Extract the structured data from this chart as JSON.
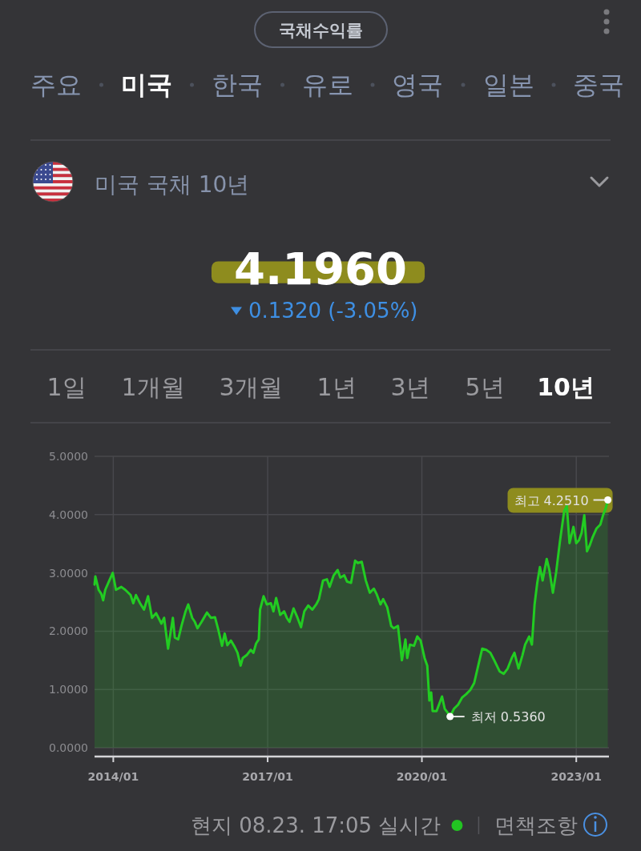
{
  "chart_data": {
    "type": "area",
    "title": "미국 국채 10년",
    "subtitle": "4.1960",
    "annotations": [
      "국채수익률",
      "주요",
      "미국",
      "한국",
      "유로",
      "영국",
      "일본",
      "중국",
      "0.1320 (-3.05%)",
      "1일",
      "1개월",
      "3개월",
      "1년",
      "3년",
      "5년",
      "10년",
      "현지 08.23. 17:05 실시간",
      "면책조항",
      {
        "text": "최고 4.2510",
        "x": "2023-08-13",
        "y": 4.251
      },
      {
        "text": "최저 0.5360",
        "x": "2020-07-19",
        "y": 0.536
      }
    ],
    "x": [
      "2013-08-21",
      "2013-08-27",
      "2013-09-19",
      "2013-10-08",
      "2013-10-21",
      "2013-11-05",
      "2013-12-04",
      "2013-12-28",
      "2014-01-20",
      "2014-02-27",
      "2014-03-27",
      "2014-05-04",
      "2014-05-23",
      "2014-06-11",
      "2014-07-10",
      "2014-08-07",
      "2014-09-05",
      "2014-10-03",
      "2014-11-01",
      "2014-12-09",
      "2014-12-28",
      "2015-01-25",
      "2015-02-13",
      "2015-02-28",
      "2015-03-14",
      "2015-04-07",
      "2015-04-30",
      "2015-05-29",
      "2015-06-17",
      "2015-07-15",
      "2015-08-03",
      "2015-08-22",
      "2015-09-20",
      "2015-10-28",
      "2015-11-25",
      "2015-12-24",
      "2016-01-17",
      "2016-02-12",
      "2016-03-02",
      "2016-03-21",
      "2016-04-15",
      "2016-05-12",
      "2016-06-01",
      "2016-06-23",
      "2016-07-08",
      "2016-08-05",
      "2016-09-03",
      "2016-09-22",
      "2016-10-11",
      "2016-10-30",
      "2016-11-08",
      "2016-12-03",
      "2016-12-26",
      "2017-01-24",
      "2017-02-11",
      "2017-03-02",
      "2017-03-31",
      "2017-04-28",
      "2017-05-17",
      "2017-06-05",
      "2017-07-04",
      "2017-08-01",
      "2017-08-26",
      "2017-09-18",
      "2017-10-16",
      "2017-11-14",
      "2017-12-12",
      "2017-12-31",
      "2018-01-29",
      "2018-02-26",
      "2018-03-17",
      "2018-04-15",
      "2018-05-13",
      "2018-06-01",
      "2018-06-29",
      "2018-07-19",
      "2018-08-16",
      "2018-09-14",
      "2018-10-03",
      "2018-10-31",
      "2018-11-29",
      "2018-12-27",
      "2019-01-25",
      "2019-02-13",
      "2019-03-13",
      "2019-04-01",
      "2019-04-30",
      "2019-05-28",
      "2019-06-16",
      "2019-07-15",
      "2019-08-12",
      "2019-09-06",
      "2019-09-19",
      "2019-10-08",
      "2019-11-06",
      "2019-11-29",
      "2019-12-23",
      "2020-01-20",
      "2020-02-08",
      "2020-02-23",
      "2020-03-07",
      "2020-03-17",
      "2020-04-14",
      "2020-05-23",
      "2020-06-11",
      "2020-07-09",
      "2020-07-19",
      "2020-08-16",
      "2020-09-14",
      "2020-10-12",
      "2020-11-10",
      "2020-12-09",
      "2021-01-06",
      "2021-02-04",
      "2021-03-04",
      "2021-04-02",
      "2021-05-01",
      "2021-05-29",
      "2021-07-06",
      "2021-08-04",
      "2021-09-01",
      "2021-09-30",
      "2021-10-19",
      "2021-11-17",
      "2021-12-15",
      "2022-01-03",
      "2022-02-01",
      "2022-02-20",
      "2022-03-11",
      "2022-03-30",
      "2022-04-18",
      "2022-05-07",
      "2022-06-05",
      "2022-06-24",
      "2022-07-19",
      "2022-08-11",
      "2022-09-08",
      "2022-10-07",
      "2022-10-26",
      "2022-11-14",
      "2022-12-12",
      "2023-01-01",
      "2023-01-20",
      "2023-02-08",
      "2023-02-27",
      "2023-03-18",
      "2023-04-06",
      "2023-04-25",
      "2023-05-24",
      "2023-06-21",
      "2023-07-10",
      "2023-07-29",
      "2023-08-13"
    ],
    "values": [
      2.8,
      2.94,
      2.71,
      2.64,
      2.53,
      2.71,
      2.87,
      3.0,
      2.71,
      2.76,
      2.71,
      2.62,
      2.48,
      2.62,
      2.48,
      2.37,
      2.6,
      2.23,
      2.31,
      2.13,
      2.23,
      1.7,
      2.0,
      2.23,
      1.89,
      1.86,
      2.09,
      2.34,
      2.46,
      2.23,
      2.16,
      2.05,
      2.16,
      2.32,
      2.23,
      2.24,
      2.02,
      1.75,
      1.96,
      1.76,
      1.84,
      1.73,
      1.63,
      1.41,
      1.54,
      1.59,
      1.68,
      1.63,
      1.79,
      1.86,
      2.37,
      2.6,
      2.46,
      2.48,
      2.34,
      2.57,
      2.28,
      2.34,
      2.23,
      2.16,
      2.39,
      2.23,
      2.07,
      2.34,
      2.44,
      2.37,
      2.46,
      2.55,
      2.87,
      2.89,
      2.76,
      2.96,
      3.05,
      2.92,
      2.96,
      2.85,
      2.83,
      3.21,
      3.17,
      3.19,
      2.87,
      2.66,
      2.73,
      2.64,
      2.46,
      2.55,
      2.41,
      2.09,
      2.05,
      2.09,
      1.5,
      1.86,
      1.54,
      1.77,
      1.75,
      1.91,
      1.84,
      1.54,
      1.41,
      0.81,
      0.95,
      0.63,
      0.63,
      0.88,
      0.67,
      0.58,
      0.536,
      0.67,
      0.74,
      0.86,
      0.92,
      0.99,
      1.11,
      1.41,
      1.7,
      1.68,
      1.63,
      1.5,
      1.31,
      1.27,
      1.36,
      1.54,
      1.63,
      1.36,
      1.59,
      1.77,
      1.91,
      1.77,
      2.46,
      2.83,
      3.1,
      2.87,
      3.24,
      3.05,
      2.66,
      3.01,
      3.56,
      4.06,
      4.15,
      3.51,
      3.79,
      3.51,
      3.56,
      3.69,
      3.99,
      3.37,
      3.47,
      3.6,
      3.76,
      3.83,
      3.99,
      4.11,
      4.251
    ],
    "color": "#22cc22",
    "xlim": [
      "2013-08-21",
      "2023-08-21"
    ],
    "ylim": [
      -0.15,
      5
    ],
    "xticks": [
      {
        "value": "2014-01-01",
        "label": "2014/01"
      },
      {
        "value": "2017-01-01",
        "label": "2017/01"
      },
      {
        "value": "2020-01-01",
        "label": "2020/01"
      },
      {
        "value": "2023-01-01",
        "label": "2023/01"
      }
    ],
    "yticks": [
      {
        "value": 0,
        "label": "0.0000"
      },
      {
        "value": 1,
        "label": "1.0000"
      },
      {
        "value": 2,
        "label": "2.0000"
      },
      {
        "value": 3,
        "label": "3.0000"
      },
      {
        "value": 4,
        "label": "4.0000"
      },
      {
        "value": 5,
        "label": "5.0000"
      }
    ],
    "grid": true
  }
}
